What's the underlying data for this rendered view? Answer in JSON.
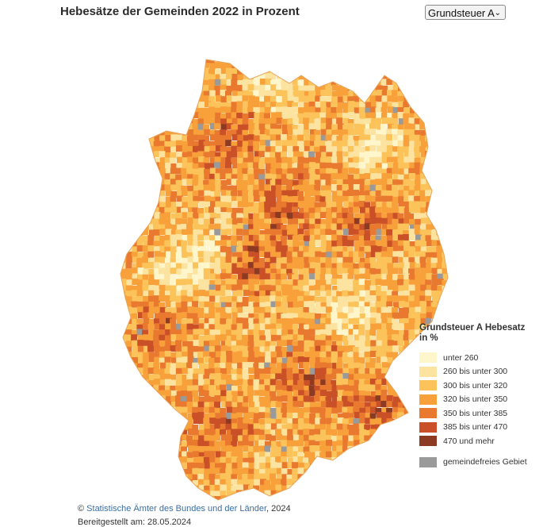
{
  "header": {
    "title": "Hebesätze der Gemeinden 2022 in Prozent"
  },
  "dropdown": {
    "selected": "Grundsteuer A",
    "icon": "chevron-down-icon"
  },
  "legend": {
    "title_line1": "Grundsteuer A Hebesatz",
    "title_line2": "in %",
    "items": [
      {
        "label": "unter 260",
        "color": "#fff6cc"
      },
      {
        "label": "260 bis unter 300",
        "color": "#fde3a0"
      },
      {
        "label": "300 bis unter 320",
        "color": "#fcc35a"
      },
      {
        "label": "320 bis unter 350",
        "color": "#f8a13b"
      },
      {
        "label": "350 bis unter 385",
        "color": "#e9792f"
      },
      {
        "label": "385 bis unter 470",
        "color": "#c95027"
      },
      {
        "label": "470 und mehr",
        "color": "#8c3a22"
      }
    ],
    "nodata": {
      "label": "gemeindefreies Gebiet",
      "color": "#9a9a9a"
    }
  },
  "footer": {
    "copyright_symbol": "©",
    "source_link": "Statistische Ämter des Bundes und der Länder",
    "source_suffix": ", 2024",
    "line2": "Bereitgestellt am: 28.05.2024"
  }
}
